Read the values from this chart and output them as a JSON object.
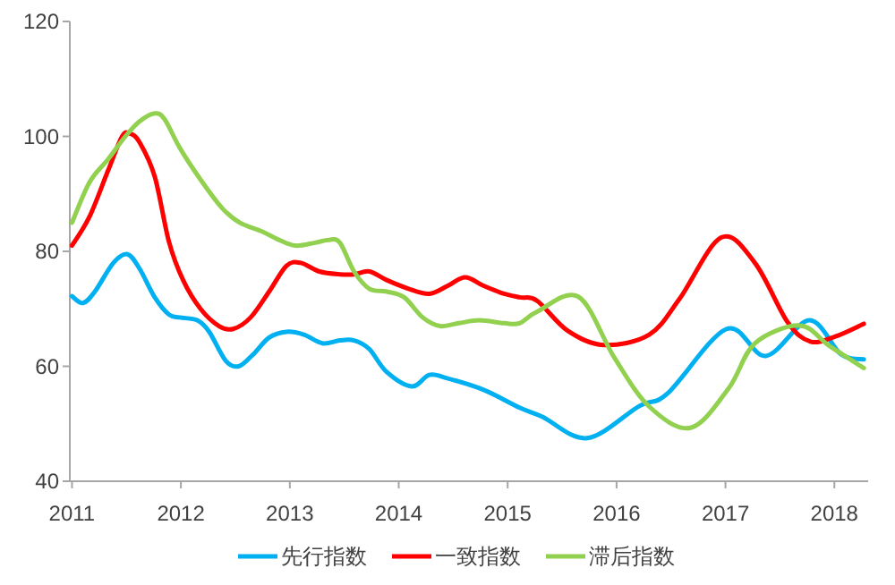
{
  "chart_data": {
    "type": "line",
    "xlim": [
      2010.98,
      2018.31
    ],
    "xticks": [
      2011,
      2012,
      2013,
      2014,
      2015,
      2016,
      2017,
      2018
    ],
    "ylim": [
      40,
      120
    ],
    "yticks": [
      40,
      60,
      80,
      100,
      120
    ],
    "grid": false,
    "legend": "bottom",
    "marker": "none",
    "line_style": "solid",
    "series": [
      {
        "name": "先行指数",
        "color": "#00b0f0",
        "x": [
          2011.0,
          2011.1,
          2011.21,
          2011.38,
          2011.51,
          2011.62,
          2011.76,
          2011.89,
          2011.99,
          2012.15,
          2012.26,
          2012.41,
          2012.53,
          2012.66,
          2012.81,
          2012.97,
          2013.13,
          2013.3,
          2013.46,
          2013.59,
          2013.73,
          2013.89,
          2014.12,
          2014.28,
          2014.43,
          2014.78,
          2015.11,
          2015.32,
          2015.73,
          2016.21,
          2016.47,
          2017.01,
          2017.37,
          2017.77,
          2018.06,
          2018.27
        ],
        "values": [
          72.2,
          71,
          73,
          78,
          79.5,
          77,
          72,
          69,
          68.5,
          68,
          66,
          61,
          60,
          62,
          65,
          66,
          65.5,
          64,
          64.5,
          64.5,
          63,
          59,
          56.5,
          58.5,
          58,
          55.9,
          52.8,
          51.2,
          47.5,
          53.1,
          55.3,
          66.5,
          61.8,
          68,
          62.1,
          61.2
        ]
      },
      {
        "name": "一致指数",
        "color": "#ff0000",
        "x": [
          2011.0,
          2011.16,
          2011.33,
          2011.46,
          2011.53,
          2011.62,
          2011.76,
          2011.89,
          2012.02,
          2012.18,
          2012.35,
          2012.48,
          2012.64,
          2012.81,
          2012.97,
          2013.1,
          2013.27,
          2013.46,
          2013.59,
          2013.73,
          2013.89,
          2014.09,
          2014.28,
          2014.45,
          2014.61,
          2014.78,
          2014.94,
          2015.11,
          2015.27,
          2015.55,
          2015.88,
          2016.3,
          2016.58,
          2016.96,
          2017.27,
          2017.57,
          2017.78,
          2018.01,
          2018.27
        ],
        "values": [
          81,
          86,
          94,
          100,
          100.5,
          99,
          93,
          81.7,
          75,
          70,
          67,
          66.5,
          68.5,
          73,
          77.5,
          78,
          76.5,
          76,
          76,
          76.5,
          75,
          73.5,
          72.6,
          74,
          75.5,
          74,
          72.8,
          72,
          71.4,
          66.2,
          63.7,
          65.5,
          71.8,
          82.4,
          78,
          67.7,
          64.3,
          65.2,
          67.4
        ]
      },
      {
        "name": "滞后指数",
        "color": "#92d050",
        "x": [
          2011.0,
          2011.16,
          2011.33,
          2011.49,
          2011.62,
          2011.76,
          2011.85,
          2011.99,
          2012.18,
          2012.38,
          2012.54,
          2012.74,
          2012.9,
          2013.05,
          2013.23,
          2013.36,
          2013.46,
          2013.59,
          2013.73,
          2013.89,
          2014.05,
          2014.22,
          2014.38,
          2014.55,
          2014.74,
          2014.97,
          2015.11,
          2015.27,
          2015.65,
          2015.98,
          2016.3,
          2016.68,
          2017.03,
          2017.27,
          2017.68,
          2017.95,
          2018.27
        ],
        "values": [
          85,
          92,
          96,
          100,
          102.6,
          104,
          103,
          98,
          92.5,
          87.5,
          85,
          83.5,
          82,
          81,
          81.5,
          82,
          81.5,
          76.5,
          73.5,
          73,
          72,
          68.5,
          67,
          67.5,
          68,
          67.5,
          67.5,
          69.5,
          72.1,
          61.5,
          53,
          49.3,
          56.2,
          64,
          67.1,
          63.6,
          59.7
        ]
      }
    ]
  }
}
